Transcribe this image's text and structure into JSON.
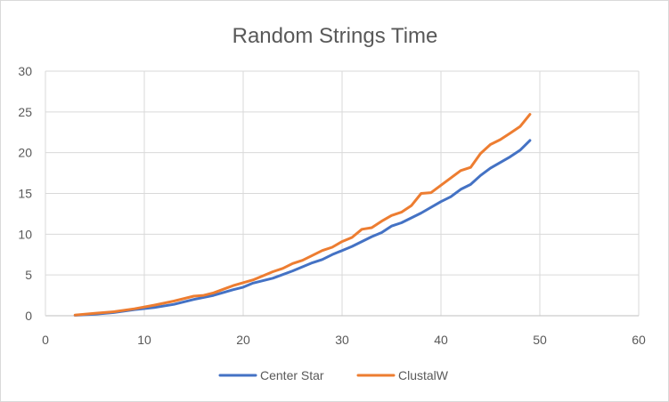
{
  "chart_data": {
    "type": "line",
    "title": "Random Strings Time",
    "xlabel": "",
    "ylabel": "",
    "xlim": [
      0,
      60
    ],
    "ylim": [
      0,
      30
    ],
    "x_ticks": [
      0,
      10,
      20,
      30,
      40,
      50,
      60
    ],
    "y_ticks": [
      0,
      5,
      10,
      15,
      20,
      25,
      30
    ],
    "grid": "horizontal",
    "legend_position": "bottom",
    "series": [
      {
        "name": "Center Star",
        "color": "#4472c4",
        "points": [
          [
            3,
            0.05
          ],
          [
            5,
            0.2
          ],
          [
            7,
            0.4
          ],
          [
            9,
            0.75
          ],
          [
            11,
            1.0
          ],
          [
            13,
            1.4
          ],
          [
            15,
            2.0
          ],
          [
            17,
            2.5
          ],
          [
            19,
            3.2
          ],
          [
            20,
            3.5
          ],
          [
            21,
            4.0
          ],
          [
            23,
            4.6
          ],
          [
            25,
            5.5
          ],
          [
            27,
            6.5
          ],
          [
            28,
            6.9
          ],
          [
            29,
            7.5
          ],
          [
            31,
            8.5
          ],
          [
            33,
            9.7
          ],
          [
            34,
            10.2
          ],
          [
            35,
            11.0
          ],
          [
            36,
            11.4
          ],
          [
            38,
            12.6
          ],
          [
            40,
            14.0
          ],
          [
            41,
            14.6
          ],
          [
            42,
            15.5
          ],
          [
            43,
            16.1
          ],
          [
            44,
            17.2
          ],
          [
            45,
            18.1
          ],
          [
            47,
            19.5
          ],
          [
            48,
            20.3
          ],
          [
            49,
            21.5
          ]
        ]
      },
      {
        "name": "ClustalW",
        "color": "#ed7d31",
        "points": [
          [
            3,
            0.08
          ],
          [
            5,
            0.3
          ],
          [
            7,
            0.5
          ],
          [
            9,
            0.85
          ],
          [
            11,
            1.3
          ],
          [
            13,
            1.8
          ],
          [
            15,
            2.4
          ],
          [
            16,
            2.5
          ],
          [
            17,
            2.8
          ],
          [
            19,
            3.7
          ],
          [
            21,
            4.4
          ],
          [
            23,
            5.4
          ],
          [
            24,
            5.8
          ],
          [
            25,
            6.4
          ],
          [
            26,
            6.8
          ],
          [
            28,
            8.0
          ],
          [
            29,
            8.4
          ],
          [
            30,
            9.1
          ],
          [
            31,
            9.6
          ],
          [
            32,
            10.6
          ],
          [
            33,
            10.8
          ],
          [
            34,
            11.6
          ],
          [
            35,
            12.3
          ],
          [
            36,
            12.7
          ],
          [
            37,
            13.5
          ],
          [
            38,
            15.0
          ],
          [
            39,
            15.1
          ],
          [
            40,
            16.0
          ],
          [
            41,
            16.9
          ],
          [
            42,
            17.8
          ],
          [
            43,
            18.2
          ],
          [
            44,
            19.9
          ],
          [
            45,
            21.0
          ],
          [
            46,
            21.6
          ],
          [
            47,
            22.4
          ],
          [
            48,
            23.2
          ],
          [
            49,
            24.7
          ]
        ]
      }
    ]
  }
}
